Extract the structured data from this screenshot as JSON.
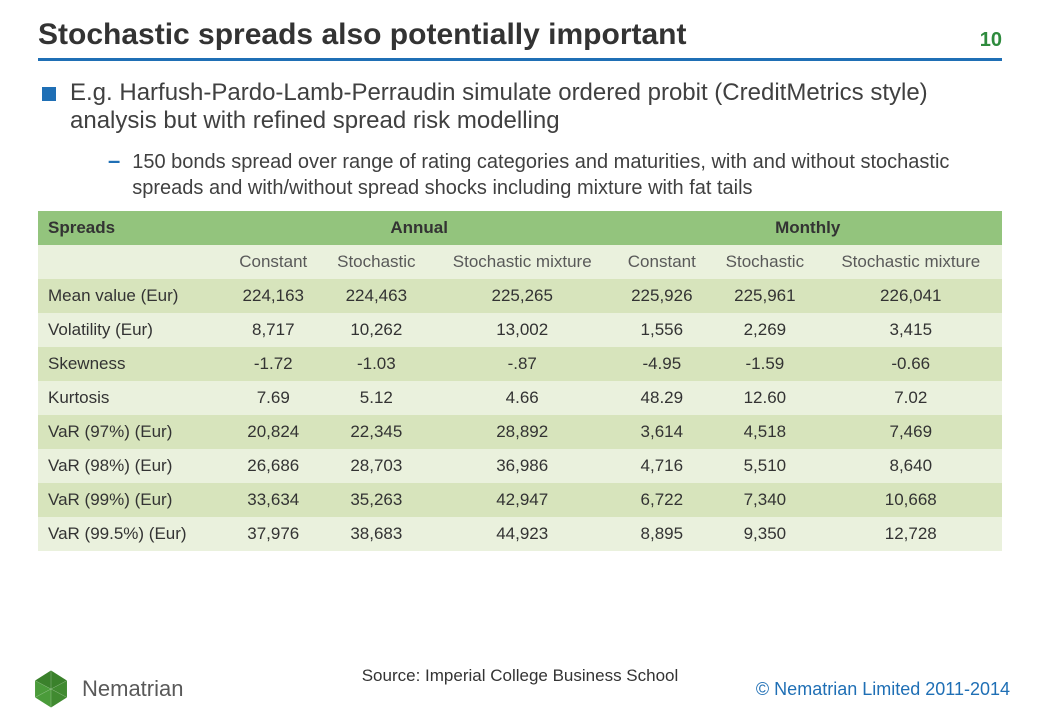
{
  "colors": {
    "accent_blue": "#1f6fb5",
    "accent_green": "#2e8b3d",
    "table_header_bg": "#93c47d",
    "table_band_a": "#eaf1dd",
    "table_band_b": "#d7e4bc",
    "logo_green": "#4a9b3a",
    "logo_dark": "#2d6b1f"
  },
  "header": {
    "title": "Stochastic spreads also potentially important",
    "page_number": "10"
  },
  "body": {
    "bullet_main": "E.g. Harfush-Pardo-Lamb-Perraudin simulate ordered probit (CreditMetrics style) analysis but with refined spread risk modelling",
    "bullet_sub": "150 bonds spread over range of rating categories and maturities, with and without stochastic spreads and with/without spread shocks including mixture with fat tails"
  },
  "table": {
    "header1": {
      "spreads": "Spreads",
      "group1": "Annual",
      "group2": "Monthly"
    },
    "header2": [
      "Constant",
      "Stochastic",
      "Stochastic mixture",
      "Constant",
      "Stochastic",
      "Stochastic mixture"
    ],
    "rows": [
      {
        "label": "Mean value (Eur)",
        "vals": [
          "224,163",
          "224,463",
          "225,265",
          "225,926",
          "225,961",
          "226,041"
        ]
      },
      {
        "label": "Volatility (Eur)",
        "vals": [
          "8,717",
          "10,262",
          "13,002",
          "1,556",
          "2,269",
          "3,415"
        ]
      },
      {
        "label": "Skewness",
        "vals": [
          "-1.72",
          "-1.03",
          "-.87",
          "-4.95",
          "-1.59",
          "-0.66"
        ]
      },
      {
        "label": "Kurtosis",
        "vals": [
          "7.69",
          "5.12",
          "4.66",
          "48.29",
          "12.60",
          "7.02"
        ]
      },
      {
        "label": "VaR (97%) (Eur)",
        "vals": [
          "20,824",
          "22,345",
          "28,892",
          "3,614",
          "4,518",
          "7,469"
        ]
      },
      {
        "label": "VaR (98%) (Eur)",
        "vals": [
          "26,686",
          "28,703",
          "36,986",
          "4,716",
          "5,510",
          "8,640"
        ]
      },
      {
        "label": "VaR (99%) (Eur)",
        "vals": [
          "33,634",
          "35,263",
          "42,947",
          "6,722",
          "7,340",
          "10,668"
        ]
      },
      {
        "label": "VaR (99.5%) (Eur)",
        "vals": [
          "37,976",
          "38,683",
          "44,923",
          "8,895",
          "9,350",
          "12,728"
        ]
      }
    ]
  },
  "footer": {
    "brand": "Nematrian",
    "source": "Source: Imperial College Business School",
    "copyright": "© Nematrian Limited 2011-2014"
  }
}
